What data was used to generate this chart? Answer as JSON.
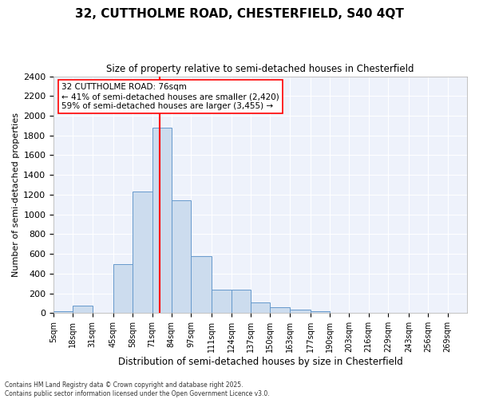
{
  "title_line1": "32, CUTTHOLME ROAD, CHESTERFIELD, S40 4QT",
  "title_line2": "Size of property relative to semi-detached houses in Chesterfield",
  "xlabel": "Distribution of semi-detached houses by size in Chesterfield",
  "ylabel": "Number of semi-detached properties",
  "bar_color": "#ccdcee",
  "bar_edge_color": "#6699cc",
  "background_color": "#eef2fb",
  "grid_color": "white",
  "vline_color": "red",
  "vline_x": 76,
  "annotation_title": "32 CUTTHOLME ROAD: 76sqm",
  "annotation_smaller": "← 41% of semi-detached houses are smaller (2,420)",
  "annotation_larger": "59% of semi-detached houses are larger (3,455) →",
  "footer_line1": "Contains HM Land Registry data © Crown copyright and database right 2025.",
  "footer_line2": "Contains public sector information licensed under the Open Government Licence v3.0.",
  "bin_labels": [
    "5sqm",
    "18sqm",
    "31sqm",
    "45sqm",
    "58sqm",
    "71sqm",
    "84sqm",
    "97sqm",
    "111sqm",
    "124sqm",
    "137sqm",
    "150sqm",
    "163sqm",
    "177sqm",
    "190sqm",
    "203sqm",
    "216sqm",
    "229sqm",
    "243sqm",
    "256sqm",
    "269sqm"
  ],
  "bin_edges": [
    5,
    18,
    31,
    45,
    58,
    71,
    84,
    97,
    111,
    124,
    137,
    150,
    163,
    177,
    190,
    203,
    216,
    229,
    243,
    256,
    269,
    282
  ],
  "bar_heights": [
    15,
    75,
    0,
    500,
    1230,
    1880,
    1140,
    580,
    240,
    240,
    110,
    60,
    35,
    20,
    0,
    0,
    0,
    0,
    0,
    0,
    0
  ],
  "ylim": [
    0,
    2400
  ],
  "yticks": [
    0,
    200,
    400,
    600,
    800,
    1000,
    1200,
    1400,
    1600,
    1800,
    2000,
    2200,
    2400
  ]
}
